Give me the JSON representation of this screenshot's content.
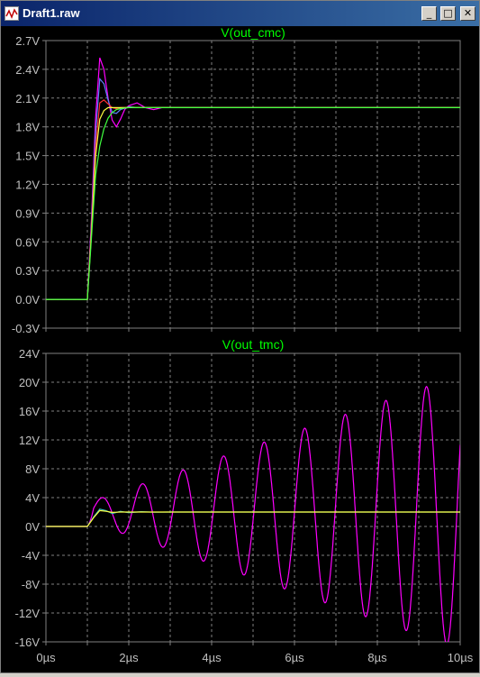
{
  "window": {
    "title": "Draft1.raw",
    "minimize_symbol": "_",
    "maximize_symbol": "□",
    "close_symbol": "✕",
    "icon": "waveform-icon"
  },
  "colors": {
    "background": "#000000",
    "grid": "#808080",
    "axis_text": "#c0c0c0",
    "title_text": "#00ff00"
  },
  "chart_data": [
    {
      "type": "line",
      "title": "V(out_cmc)",
      "x_range": [
        0,
        10
      ],
      "x_unit": "µs",
      "ylim": [
        -0.3,
        2.7
      ],
      "yticks": [
        "2.7V",
        "2.4V",
        "2.1V",
        "1.8V",
        "1.5V",
        "1.2V",
        "0.9V",
        "0.6V",
        "0.3V",
        "0.0V",
        "-0.3V"
      ],
      "ytick_values": [
        2.7,
        2.4,
        2.1,
        1.8,
        1.5,
        1.2,
        0.9,
        0.6,
        0.3,
        0.0,
        -0.3
      ],
      "xticks": [],
      "grid": true,
      "series": [
        {
          "color": "#ff00ff",
          "x": [
            0,
            1,
            1.1,
            1.2,
            1.3,
            1.4,
            1.5,
            1.6,
            1.7,
            1.8,
            1.9,
            2.0,
            2.2,
            2.4,
            2.6,
            2.8,
            3.0,
            3.5,
            4,
            10
          ],
          "y": [
            0,
            0,
            0.85,
            1.9,
            2.52,
            2.4,
            2.1,
            1.87,
            1.8,
            1.88,
            1.98,
            2.02,
            2.05,
            2.0,
            1.98,
            2.0,
            2.0,
            2.0,
            2.0,
            2.0
          ]
        },
        {
          "color": "#6080ff",
          "x": [
            0,
            1,
            1.1,
            1.2,
            1.3,
            1.4,
            1.5,
            1.6,
            1.7,
            1.8,
            2.0,
            2.2,
            2.5,
            3,
            10
          ],
          "y": [
            0,
            0,
            0.8,
            1.75,
            2.3,
            2.25,
            2.08,
            1.95,
            1.94,
            1.98,
            2.01,
            2.0,
            2.0,
            2.0,
            2.0
          ]
        },
        {
          "color": "#ff3030",
          "x": [
            0,
            1,
            1.1,
            1.2,
            1.3,
            1.4,
            1.5,
            1.6,
            1.7,
            1.8,
            2.0,
            2.5,
            3,
            10
          ],
          "y": [
            0,
            0,
            0.75,
            1.6,
            2.05,
            2.08,
            2.04,
            2.0,
            1.99,
            2.0,
            2.0,
            2.0,
            2.0,
            2.0
          ]
        },
        {
          "color": "#ffff40",
          "x": [
            0,
            1,
            1.1,
            1.2,
            1.3,
            1.4,
            1.5,
            1.6,
            1.7,
            1.8,
            2.0,
            2.5,
            3,
            10
          ],
          "y": [
            0,
            0,
            0.7,
            1.5,
            1.88,
            1.97,
            2.0,
            2.0,
            2.0,
            2.0,
            2.0,
            2.0,
            2.0,
            2.0
          ]
        },
        {
          "color": "#40ff40",
          "x": [
            0,
            1,
            1.1,
            1.2,
            1.3,
            1.4,
            1.5,
            1.6,
            1.7,
            1.8,
            2.0,
            2.2,
            2.5,
            3,
            10
          ],
          "y": [
            0,
            0,
            0.65,
            1.3,
            1.6,
            1.78,
            1.89,
            1.95,
            1.98,
            1.99,
            2.0,
            2.0,
            2.0,
            2.0,
            2.0
          ]
        }
      ]
    },
    {
      "type": "line",
      "title": "V(out_tmc)",
      "x_range": [
        0,
        10
      ],
      "x_unit": "µs",
      "ylim": [
        -16,
        24
      ],
      "yticks": [
        "24V",
        "20V",
        "16V",
        "12V",
        "8V",
        "4V",
        "0V",
        "-4V",
        "-8V",
        "-12V",
        "-16V"
      ],
      "ytick_values": [
        24,
        20,
        16,
        12,
        8,
        4,
        0,
        -4,
        -8,
        -12,
        -16
      ],
      "xticks": [
        "0µs",
        "2µs",
        "4µs",
        "6µs",
        "8µs",
        "10µs"
      ],
      "xtick_values": [
        0,
        2,
        4,
        6,
        8,
        10
      ],
      "grid": true,
      "series": [
        {
          "color": "#ff00ff",
          "start": 1.0,
          "offset": 2.0,
          "period": 0.98,
          "amp_start": 1.3,
          "amp_end": 19.0,
          "duration": 9.0
        },
        {
          "color": "#40c0c0",
          "x": [
            0,
            1,
            1.15,
            1.3,
            1.45,
            1.6,
            1.8,
            2.0,
            2.3,
            2.6,
            3,
            4,
            10
          ],
          "y": [
            0,
            0,
            1.3,
            2.4,
            2.2,
            1.8,
            2.1,
            1.9,
            2.05,
            1.98,
            2.0,
            2.0,
            2.0
          ]
        },
        {
          "color": "#ffff40",
          "x": [
            0,
            1,
            1.15,
            1.3,
            1.45,
            1.6,
            1.8,
            2.0,
            2.5,
            3,
            10
          ],
          "y": [
            0,
            0,
            1.2,
            2.2,
            2.1,
            1.95,
            2.0,
            2.0,
            2.0,
            2.0,
            2.0
          ]
        }
      ]
    }
  ]
}
